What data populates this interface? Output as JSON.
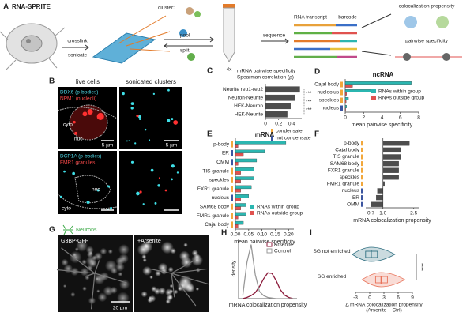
{
  "panel_a": {
    "letter": "A",
    "title": "RNA-SPRITE",
    "cluster": "cluster:",
    "crosslink": "crosslink",
    "sonicate": "sonicate",
    "pool": "pool",
    "split": "split",
    "rounds": "4x",
    "sequence": "sequence",
    "rna_transcript": "RNA transcript",
    "barcode": "barcode",
    "colocalization": "colocalization propensity",
    "pairwise": "pairwise specificity"
  },
  "panel_b": {
    "letter": "B",
    "live": "live cells",
    "sonicated": "sonicated clusters",
    "top_marker_1": "DDX6 (p-bodies)",
    "top_marker_2": "NPM1 (nucleoli)",
    "top_cyto": "cyto",
    "top_nuc": "nuc",
    "scale_1": "5 µm",
    "scale_2": "5 µm",
    "bottom_marker_1": "DCP1A (p-bodies)",
    "bottom_marker_2": "FMR1 granules",
    "bottom_nuc": "nuc",
    "bottom_cyto": "cyto"
  },
  "panel_g": {
    "letter": "G",
    "cell_type": "Neurons",
    "left": "G3BP-GFP",
    "right": "+Arsenite",
    "scale": "20 µm"
  },
  "chart_data": [
    {
      "panel": "C",
      "type": "bar",
      "orientation": "horizontal",
      "title": "mRNA pairwise specificity",
      "subtitle": "Spearman correlation (ρ)",
      "categories": [
        "Neurite rep1-rep2",
        "Neuron-Neurite",
        "HEK-Neuron",
        "HEK-Neurite"
      ],
      "values": [
        0.52,
        0.45,
        0.38,
        0.33
      ],
      "color": "#4d4d4d",
      "xlim": [
        0,
        0.55
      ],
      "xticks": [
        0,
        0.2,
        0.4
      ],
      "significance": [
        "***",
        "***",
        "***"
      ],
      "category_legend": [
        {
          "name": "condensate",
          "color": "#f2a73b"
        },
        {
          "name": "not condensate",
          "color": "#3b55a0"
        }
      ]
    },
    {
      "panel": "D",
      "type": "bar",
      "orientation": "horizontal",
      "title": "ncRNA",
      "xlabel": "mean pairwise specificity",
      "categories": [
        "Cajal body",
        "nucleolus",
        "speckles",
        "nucleus"
      ],
      "condensate": [
        true,
        true,
        true,
        false
      ],
      "series": [
        {
          "name": "RNAs within group",
          "color": "#2bb6b0",
          "values": [
            7.2,
            3.0,
            0.35,
            0.15
          ]
        },
        {
          "name": "RNAs outside group",
          "color": "#e0524f",
          "values": [
            0.8,
            0.15,
            0.1,
            0.05
          ]
        }
      ],
      "xlim": [
        0,
        8
      ],
      "xticks": [
        0,
        2,
        4,
        6,
        8
      ]
    },
    {
      "panel": "E",
      "type": "bar",
      "orientation": "horizontal",
      "title": "mRNA",
      "xlabel": "mean pairwise specificity",
      "categories": [
        "p-body",
        "ER",
        "OMM",
        "TIS granule",
        "speckles",
        "FXR1 granule",
        "nucleus",
        "SAM68 body",
        "FMR1 granule",
        "Cajal body"
      ],
      "condensate": [
        true,
        false,
        false,
        true,
        true,
        true,
        false,
        true,
        true,
        true
      ],
      "series": [
        {
          "name": "RNAs within group",
          "color": "#2bb6b0",
          "values": [
            0.19,
            0.11,
            0.08,
            0.07,
            0.07,
            0.06,
            0.05,
            0.04,
            0.04,
            0.03
          ]
        },
        {
          "name": "RNAs outside group",
          "color": "#e0524f",
          "values": [
            0.01,
            0.03,
            0.01,
            0.02,
            0.02,
            0.02,
            0.02,
            0.02,
            0.01,
            0.01
          ]
        }
      ],
      "xlim": [
        0,
        0.22
      ],
      "xticks": [
        {
          "value": 0,
          "label": "0.00"
        },
        0.05,
        {
          "value": 0.1,
          "label": "0.10"
        },
        0.15,
        {
          "value": 0.2,
          "label": "0.20"
        }
      ]
    },
    {
      "panel": "F",
      "type": "bar",
      "orientation": "horizontal",
      "xlabel": "mRNA colocalization propensity",
      "log_scale": true,
      "baseline": 1,
      "categories": [
        "p-body",
        "Cajal body",
        "TIS granule",
        "SAM68 body",
        "FXR1 granule",
        "speckles",
        "FMR1 granule",
        "nucleus",
        "ER",
        "OMM"
      ],
      "condensate": [
        true,
        true,
        true,
        true,
        true,
        true,
        true,
        false,
        false,
        false
      ],
      "values": [
        2.2,
        1.7,
        1.7,
        1.6,
        1.6,
        1.6,
        1.05,
        0.85,
        0.82,
        0.7
      ],
      "color": "#4d4d4d",
      "xlim": [
        0.6,
        2.9
      ],
      "xticks": [
        0.7,
        {
          "value": 1,
          "label": "1.0"
        },
        2.5
      ]
    },
    {
      "panel": "H",
      "type": "line",
      "ylabel": "density",
      "xlabel": "mRNA colocalization propensity",
      "x": [
        0,
        0.5,
        1,
        1.5,
        2,
        2.5,
        3,
        3.5,
        4,
        4.5,
        5,
        5.5,
        6
      ],
      "series": [
        {
          "name": "Arsenite",
          "color": "#8b1a3a",
          "values": [
            0,
            0.02,
            0.05,
            0.1,
            0.2,
            0.33,
            0.43,
            0.42,
            0.3,
            0.15,
            0.06,
            0.02,
            0
          ]
        },
        {
          "name": "Control",
          "color": "#999999",
          "values": [
            0.05,
            0.6,
            0.9,
            0.4,
            0.12,
            0.05,
            0.02,
            0.01,
            0,
            0,
            0,
            0,
            0
          ]
        }
      ],
      "xlim": [
        -0.5,
        6.5
      ],
      "ylim": [
        0,
        1
      ]
    },
    {
      "panel": "I",
      "type": "violin",
      "orientation": "horizontal",
      "categories": [
        "SG not enriched",
        "SG enriched"
      ],
      "medians": [
        0.3,
        2.4
      ],
      "colors": [
        "#2e6e80",
        "#e8735a"
      ],
      "xlim": [
        -3,
        9
      ],
      "xticks": [
        -3,
        0,
        3,
        6,
        9
      ],
      "xlabel": [
        "Δ mRNA colocalization propensity",
        "(Arsenite – Ctrl)"
      ],
      "significance": "****"
    }
  ]
}
